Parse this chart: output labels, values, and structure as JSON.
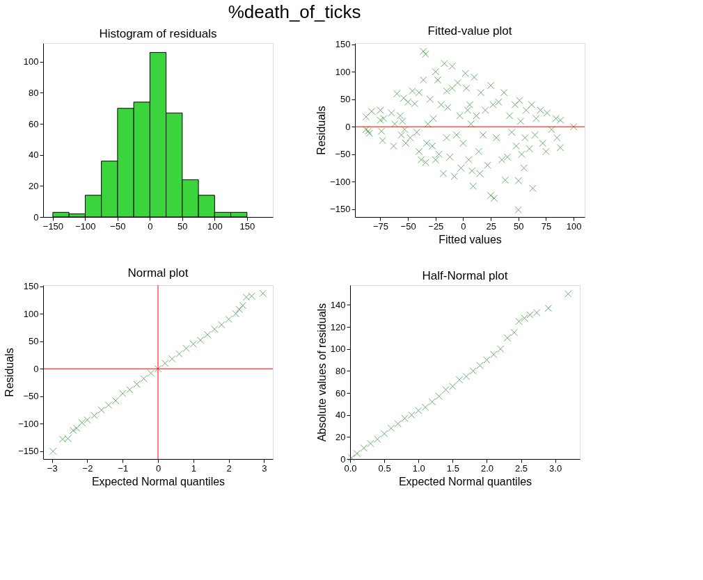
{
  "chart_data": [
    {
      "type": "histogram",
      "title": "Histogram of residuals",
      "annotations": [
        "%death_of_ticks"
      ],
      "color": "#3cd43c",
      "bins": [
        -150,
        -125,
        -100,
        -75,
        -50,
        -25,
        0,
        25,
        50,
        75,
        100,
        125,
        150
      ],
      "values": [
        3,
        2,
        14,
        36,
        70,
        74,
        106,
        67,
        24,
        14,
        3,
        3
      ],
      "xlim": [
        -165,
        190
      ],
      "xticks": [
        -150,
        -100,
        -50,
        0,
        50,
        100,
        150
      ],
      "ylim": [
        0,
        112
      ],
      "yticks": [
        0,
        20,
        40,
        60,
        80,
        100
      ]
    },
    {
      "type": "scatter",
      "title": "Fitted-value plot",
      "xlabel": "Fitted values",
      "ylabel": "Residuals",
      "color": "#2a8c2a",
      "marker": "cross",
      "x": [
        -88,
        -88,
        -85,
        -83,
        -86,
        -75,
        -75,
        -74,
        -73,
        -72,
        -65,
        -63,
        -62,
        -60,
        -57,
        -56,
        -55,
        -54,
        -53,
        -52,
        -50,
        -48,
        -46,
        -44,
        -42,
        -40,
        -40,
        -38,
        -36,
        -36,
        -34,
        -34,
        -33,
        -32,
        -30,
        -28,
        -27,
        -25,
        -25,
        -23,
        -22,
        -20,
        -18,
        -17,
        -15,
        -15,
        -14,
        -12,
        -10,
        -10,
        -8,
        -6,
        -5,
        -3,
        -2,
        0,
        2,
        3,
        4,
        5,
        6,
        7,
        8,
        9,
        10,
        12,
        14,
        15,
        16,
        18,
        20,
        22,
        25,
        25,
        27,
        28,
        30,
        32,
        35,
        37,
        38,
        40,
        42,
        44,
        47,
        48,
        50,
        50,
        51,
        52,
        53,
        55,
        56,
        57,
        60,
        62,
        63,
        65,
        66,
        70,
        72,
        75,
        76,
        80,
        84,
        85,
        88,
        88,
        100
      ],
      "values": [
        18,
        -5,
        -12,
        28,
        -8,
        30,
        12,
        -8,
        -25,
        15,
        25,
        -35,
        5,
        60,
        20,
        -15,
        10,
        52,
        -5,
        -30,
        45,
        -20,
        65,
        42,
        -10,
        -45,
        62,
        -60,
        85,
        137,
        132,
        -65,
        -30,
        5,
        50,
        -35,
        15,
        100,
        -60,
        85,
        -50,
        40,
        -85,
        115,
        65,
        -20,
        35,
        -55,
        110,
        70,
        -90,
        -15,
        80,
        20,
        -75,
        -30,
        97,
        70,
        30,
        -60,
        40,
        5,
        -80,
        -108,
        90,
        20,
        -45,
        -85,
        62,
        -15,
        30,
        -70,
        75,
        -125,
        40,
        -130,
        -20,
        45,
        -60,
        62,
        -97,
        -55,
        20,
        -10,
        40,
        -35,
        -151,
        -98,
        48,
        10,
        -50,
        -75,
        -20,
        30,
        -40,
        40,
        -112,
        -15,
        15,
        30,
        -30,
        -45,
        25,
        -5,
        15,
        -20,
        -38,
        12,
        0
      ],
      "ref_lines": [
        {
          "axis": "y",
          "value": 0,
          "color": "#ff0000"
        }
      ],
      "xlim": [
        -98,
        110
      ],
      "xticks": [
        -75,
        -50,
        -25,
        0,
        25,
        50,
        75,
        100
      ],
      "ylim": [
        -164,
        152
      ],
      "yticks": [
        -150,
        -100,
        -50,
        0,
        50,
        100,
        150
      ]
    },
    {
      "type": "scatter",
      "title": "Normal plot",
      "xlabel": "Expected Normal quantiles",
      "ylabel": "Residuals",
      "color": "#2a8c2a",
      "marker": "cross",
      "x": [
        -2.97,
        -2.7,
        -2.55,
        -2.4,
        -2.3,
        -2.15,
        -2.0,
        -1.8,
        -1.6,
        -1.4,
        -1.2,
        -1.0,
        -0.8,
        -0.6,
        -0.4,
        -0.2,
        0,
        0.2,
        0.4,
        0.6,
        0.8,
        1.0,
        1.2,
        1.4,
        1.6,
        1.8,
        2.0,
        2.2,
        2.3,
        2.4,
        2.5,
        2.65,
        2.97
      ],
      "values": [
        -150,
        -128,
        -127,
        -112,
        -108,
        -98,
        -93,
        -85,
        -75,
        -66,
        -58,
        -45,
        -38,
        -28,
        -18,
        -8,
        0,
        10,
        18,
        27,
        37,
        45,
        52,
        62,
        72,
        80,
        90,
        100,
        108,
        115,
        130,
        132,
        137
      ],
      "ref_lines": [
        {
          "axis": "x",
          "value": 0,
          "color": "#ff0000"
        },
        {
          "axis": "y",
          "value": 0,
          "color": "#ff0000"
        }
      ],
      "xlim": [
        -3.25,
        3.25
      ],
      "xticks": [
        -3,
        -2,
        -1,
        0,
        1,
        2,
        3
      ],
      "ylim": [
        -164,
        152
      ],
      "yticks": [
        -150,
        -100,
        -50,
        0,
        50,
        100,
        150
      ]
    },
    {
      "type": "scatter",
      "title": "Half-Normal plot",
      "xlabel": "Expected Normal quantiles",
      "ylabel": "Absolute values of residuals",
      "color": "#2a8c2a",
      "marker": "cross",
      "x": [
        0.02,
        0.1,
        0.2,
        0.3,
        0.4,
        0.5,
        0.6,
        0.7,
        0.8,
        0.9,
        1.0,
        1.1,
        1.2,
        1.3,
        1.4,
        1.5,
        1.6,
        1.7,
        1.8,
        1.9,
        2.0,
        2.1,
        2.2,
        2.3,
        2.4,
        2.47,
        2.55,
        2.63,
        2.73,
        2.9,
        3.19
      ],
      "values": [
        1,
        5,
        10,
        14,
        18,
        23,
        28,
        32,
        37,
        40,
        44,
        47,
        52,
        57,
        63,
        66,
        72,
        75,
        80,
        85,
        90,
        95,
        100,
        110,
        115,
        125,
        128,
        131,
        133,
        137,
        150
      ],
      "xlim": [
        0,
        3.36
      ],
      "xticks": [
        {
          "value": 0,
          "label": "0.0"
        },
        0.5,
        {
          "value": 1,
          "label": "1.0"
        },
        1.5,
        {
          "value": 2,
          "label": "2.0"
        },
        2.5,
        {
          "value": 3,
          "label": "3.0"
        }
      ],
      "ylim": [
        0,
        158
      ],
      "yticks": [
        0,
        20,
        40,
        60,
        80,
        100,
        120,
        140
      ]
    }
  ]
}
